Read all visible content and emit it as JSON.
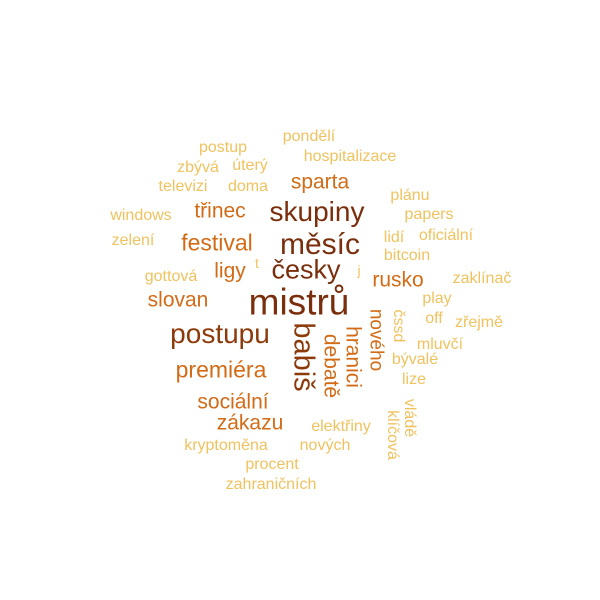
{
  "colors": {
    "darkest": "#7a2e0c",
    "dark": "#8d3a0a",
    "medium": "#d36b16",
    "light": "#f1c25e"
  },
  "words": {
    "mistru": "mistrů",
    "mesic": "měsíc",
    "skupiny": "skupiny",
    "postupu": "postupu",
    "babis": "babiš",
    "cesky": "česky",
    "festival": "festival",
    "sparta": "sparta",
    "trinec": "třinec",
    "slovan": "slovan",
    "ligy": "ligy",
    "rusko": "rusko",
    "premiera": "premiéra",
    "socialni": "sociální",
    "zakazu": "zákazu",
    "debate": "debatě",
    "hranici": "hranici",
    "noveho": "nového",
    "postup": "postup",
    "pondeli": "pondělí",
    "hospitalizace": "hospitalizace",
    "zbyva": "zbývá",
    "utery": "úterý",
    "televizi": "televizi",
    "doma": "doma",
    "windows": "windows",
    "zeleni": "zelení",
    "planu": "plánu",
    "papers": "papers",
    "lidi": "lidí",
    "oficialni": "oficiální",
    "bitcoin": "bitcoin",
    "gottova": "gottová",
    "t": "t",
    "j": "j",
    "zaklinac": "zaklínač",
    "play": "play",
    "off": "off",
    "zrejme": "zřejmě",
    "cssd": "čssd",
    "mluvci": "mluvčí",
    "byvale": "bývalé",
    "lize": "lize",
    "vlade": "vládě",
    "klicova": "klíčová",
    "elektriny": "elektřiny",
    "kryptomena": "kryptoměna",
    "novych": "nových",
    "procent": "procent",
    "zahranicnich": "zahraničních"
  }
}
